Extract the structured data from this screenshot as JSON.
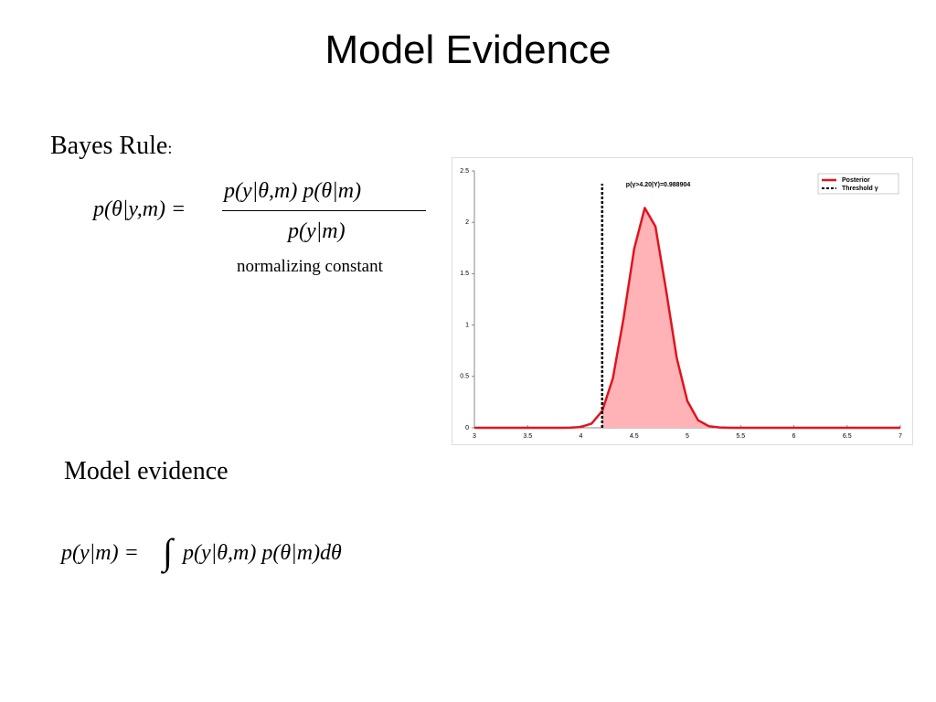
{
  "slide": {
    "title": "Model Evidence",
    "bayes_heading": "Bayes Rule",
    "bayes_colon": ":",
    "bayes_lhs": "p(θ|y,m) =",
    "bayes_numerator": "p(y|θ,m) p(θ|m)",
    "bayes_denominator": "p(y|m)",
    "normalizing_note": "normalizing constant",
    "evidence_heading": "Model evidence",
    "evidence_lhs": "p(y|m) =",
    "evidence_integral": "∫",
    "evidence_rhs": "p(y|θ,m) p(θ|m)dθ"
  },
  "chart_data": {
    "type": "density",
    "annotation": "p(γ>4.20|Y)=0.988904",
    "x": [
      3,
      3.1,
      3.2,
      3.3,
      3.4,
      3.5,
      3.6,
      3.7,
      3.8,
      3.9,
      4,
      4.1,
      4.2,
      4.3,
      4.4,
      4.5,
      4.6,
      4.7,
      4.8,
      4.9,
      5,
      5.1,
      5.2,
      5.3,
      5.4,
      5.5,
      5.6,
      5.7,
      5.8,
      5.9,
      6,
      6.1,
      6.2,
      6.3,
      6.4,
      6.5,
      6.6,
      6.7,
      6.8,
      6.9,
      7
    ],
    "series": [
      {
        "name": "Posterior",
        "color": "#e0141e",
        "fill": "#ffb3b6",
        "values": [
          0,
          0,
          0,
          0,
          0,
          0,
          0,
          0,
          0,
          0.001,
          0.008,
          0.041,
          0.163,
          0.48,
          1.06,
          1.74,
          2.14,
          1.96,
          1.34,
          0.68,
          0.26,
          0.074,
          0.016,
          0.003,
          0,
          0,
          0,
          0,
          0,
          0,
          0,
          0,
          0,
          0,
          0,
          0,
          0,
          0,
          0,
          0,
          0
        ]
      }
    ],
    "threshold": {
      "name": "Threshold γ",
      "value": 4.2,
      "color": "#000000"
    },
    "xlim": [
      3,
      7
    ],
    "ylim": [
      0,
      2.5
    ],
    "xticks": [
      3,
      3.5,
      4,
      4.5,
      5,
      5.5,
      6,
      6.5,
      7
    ],
    "yticks": [
      0,
      0.5,
      1,
      1.5,
      2,
      2.5
    ],
    "legend": "upper right"
  }
}
